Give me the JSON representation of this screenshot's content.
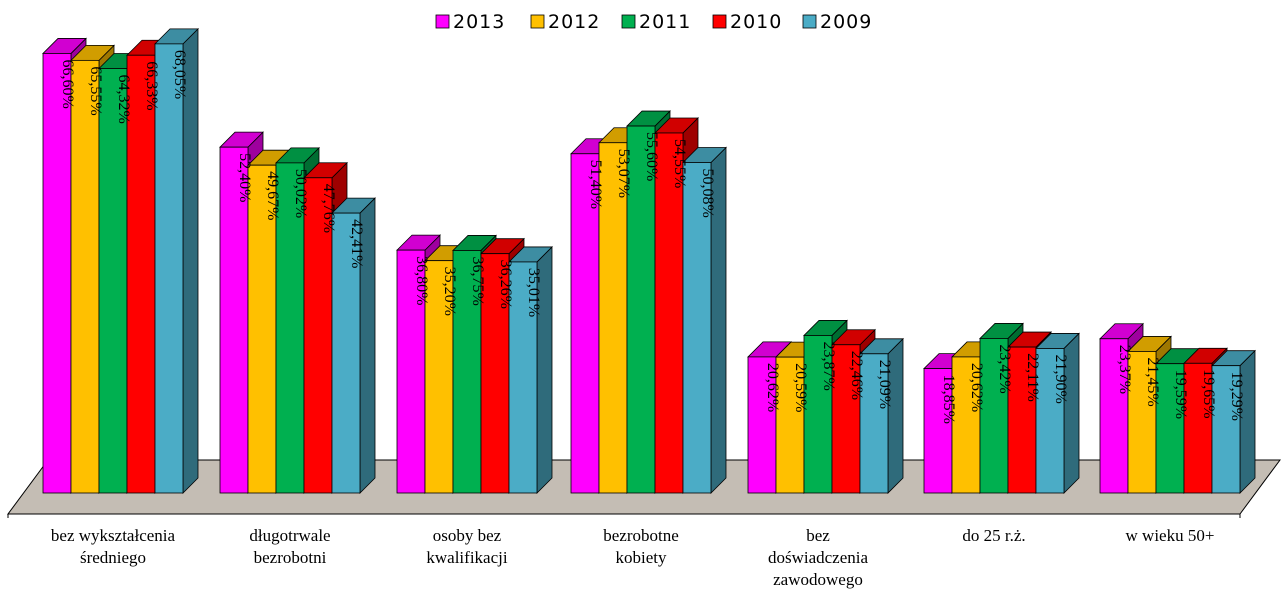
{
  "chart_data": {
    "type": "bar",
    "categories": [
      [
        "bez wykształcenia",
        "średniego"
      ],
      [
        "długotrwale",
        "bezrobotni"
      ],
      [
        "osoby bez",
        "kwalifikacji"
      ],
      [
        "bezrobotne",
        "kobiety"
      ],
      [
        "bez",
        "doświadczenia",
        "zawodowego"
      ],
      [
        "do 25 r.ż."
      ],
      [
        "w wieku 50+"
      ]
    ],
    "series": [
      {
        "name": "2013",
        "color": "#ff00ff",
        "values": [
          66.6,
          52.4,
          36.8,
          51.4,
          20.62,
          18.85,
          23.37
        ],
        "labels": [
          "66,60%",
          "52,40%",
          "36,80%",
          "51,40%",
          "20,62%",
          "18,85%",
          "23,37%"
        ]
      },
      {
        "name": "2012",
        "color": "#ffc000",
        "values": [
          65.55,
          49.67,
          35.2,
          53.07,
          20.59,
          20.62,
          21.45
        ],
        "labels": [
          "65,55%",
          "49,67%",
          "35,20%",
          "53,07%",
          "20,59%",
          "20,62%",
          "21,45%"
        ]
      },
      {
        "name": "2011",
        "color": "#00b050",
        "values": [
          64.32,
          50.02,
          36.75,
          55.6,
          23.87,
          23.42,
          19.59
        ],
        "labels": [
          "64,32%",
          "50,02%",
          "36,75%",
          "55,60%",
          "23,87%",
          "23,42%",
          "19,59%"
        ]
      },
      {
        "name": "2010",
        "color": "#ff0000",
        "values": [
          66.33,
          47.76,
          36.26,
          54.55,
          22.46,
          22.11,
          19.65
        ],
        "labels": [
          "66,33%",
          "47,76%",
          "36,26%",
          "54,55%",
          "22,46%",
          "22,11%",
          "19,65%"
        ]
      },
      {
        "name": "2009",
        "color": "#4bacc6",
        "values": [
          68.05,
          42.41,
          35.01,
          50.08,
          21.09,
          21.9,
          19.29
        ],
        "labels": [
          "68,05%",
          "42,41%",
          "35,01%",
          "50,08%",
          "21,09%",
          "21,90%",
          "19,29%"
        ]
      }
    ],
    "ylim": [
      0,
      70
    ],
    "legend_position": "top",
    "grid": false,
    "style": "3d-clustered-column",
    "floor_color": "#c4bdb4"
  }
}
